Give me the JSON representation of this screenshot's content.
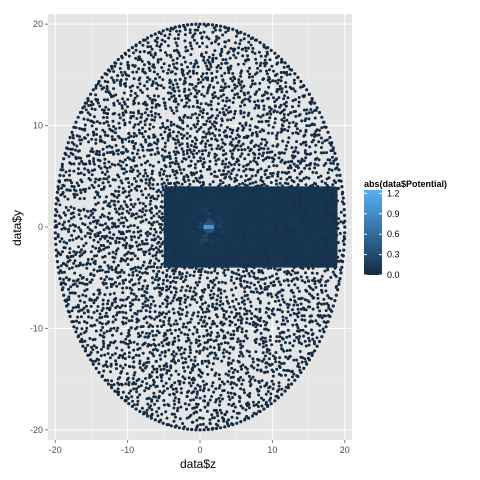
{
  "chart_data": {
    "type": "scatter",
    "title": "",
    "xlabel": "data$z",
    "ylabel": "data$y",
    "xlim": [
      -21,
      21
    ],
    "ylim": [
      -21,
      21
    ],
    "x_ticks": [
      -20,
      -10,
      0,
      10,
      20
    ],
    "y_ticks": [
      -20,
      -10,
      0,
      10,
      20
    ],
    "x_tick_labels": [
      "-20",
      "-10",
      "0",
      "10",
      "20"
    ],
    "y_tick_labels": [
      "-20",
      "-10",
      "0",
      "10",
      "20"
    ],
    "grid": true,
    "panel_background": "#e5e5e5",
    "grid_color": "#ffffff",
    "point_shape": "circle",
    "region": {
      "shape": "ellipse",
      "z_range": [
        -20,
        20
      ],
      "y_range": [
        -20,
        20
      ]
    },
    "dense_band": {
      "z_range": [
        -5,
        19
      ],
      "y_range": [
        -4,
        4
      ]
    },
    "hotspot": {
      "z": 1.2,
      "y": 0,
      "value": 1.0
    },
    "color_scale": {
      "title": "abs(data$Potential)",
      "low_color": "#132b43",
      "high_color": "#56b1f7",
      "range": [
        0,
        1.25
      ],
      "breaks": [
        0.0,
        0.3,
        0.6,
        0.9,
        1.2
      ],
      "break_labels": [
        "0.0",
        "0.3",
        "0.6",
        "0.9",
        "1.2"
      ]
    },
    "legend_position": "right"
  }
}
